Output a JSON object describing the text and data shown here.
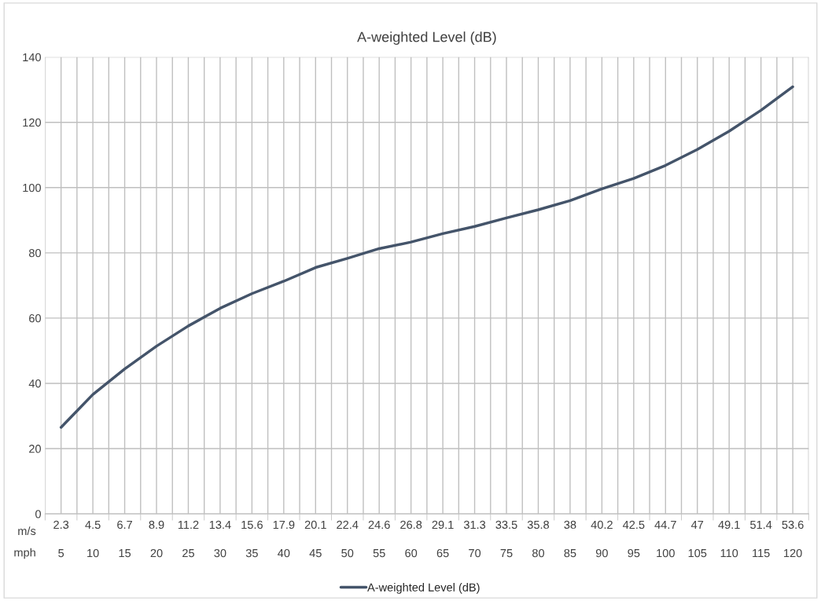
{
  "chart_data": {
    "type": "line",
    "title": "A-weighted Level (dB)",
    "xlabel": "m/s",
    "x2label": "mph",
    "categories": [
      "2.3",
      "4.5",
      "6.7",
      "8.9",
      "11.2",
      "13.4",
      "15.6",
      "17.9",
      "20.1",
      "22.4",
      "24.6",
      "26.8",
      "29.1",
      "31.3",
      "33.5",
      "35.8",
      "38",
      "40.2",
      "42.5",
      "44.7",
      "47",
      "49.1",
      "51.4",
      "53.6"
    ],
    "x2lim": [
      2.5,
      122.5
    ],
    "x2ticks": [
      5,
      10,
      15,
      20,
      25,
      30,
      35,
      40,
      45,
      50,
      55,
      60,
      65,
      70,
      75,
      80,
      85,
      90,
      95,
      100,
      105,
      110,
      115,
      120
    ],
    "series": [
      {
        "name": "A-weighted Level (dB)",
        "color": "#44546a",
        "values": [
          26.5,
          36.6,
          44.4,
          51.4,
          57.6,
          63.0,
          67.5,
          71.3,
          75.5,
          78.3,
          81.3,
          83.3,
          85.9,
          88.1,
          90.7,
          93.2,
          96.0,
          99.6,
          102.8,
          106.8,
          111.7,
          117.3,
          123.7,
          130.9
        ]
      }
    ],
    "ylim": [
      0,
      140
    ],
    "yticks": [
      0,
      20,
      40,
      60,
      80,
      100,
      120,
      140
    ],
    "grid": true,
    "legend": "bottom",
    "marker": "none",
    "line_style": "solid"
  }
}
